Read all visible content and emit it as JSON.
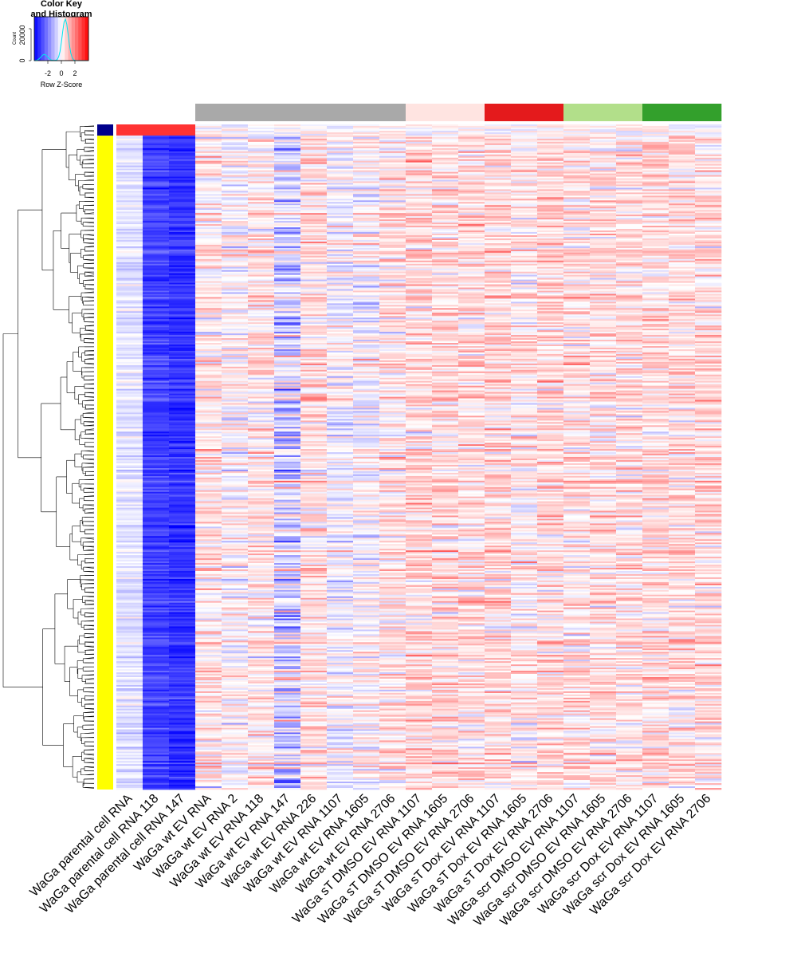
{
  "chart_data": {
    "type": "heatmap",
    "color_key": {
      "title_line1": "Color Key",
      "title_line2": "and Histogram",
      "x_ticks": [
        "-2",
        "0",
        "2"
      ],
      "y_label": "Count",
      "y_ticks": [
        "0",
        "20000"
      ],
      "x_label": "Row Z-Score",
      "scale": [
        "#0000ff",
        "#ffffff",
        "#ff0000"
      ],
      "histogram_color": "#00e5ee",
      "range": [
        -3.5,
        3.5
      ]
    },
    "columns": [
      "WaGa parental cell RNA",
      "WaGa parental cell RNA 118",
      "WaGa parental cell RNA 147",
      "WaGa wt EV RNA",
      "WaGa wt EV RNA 2",
      "WaGa wt EV RNA 118",
      "WaGa wt EV RNA 147",
      "WaGa wt EV RNA 226",
      "WaGa wt EV RNA 1107",
      "WaGa wt EV RNA 1605",
      "WaGa wt EV RNA 2706",
      "WaGa sT DMSO EV RNA 1107",
      "WaGa sT DMSO EV RNA 1605",
      "WaGa sT DMSO EV RNA 2706",
      "WaGa sT Dox EV RNA 1107",
      "WaGa sT Dox EV RNA 1605",
      "WaGa sT Dox EV RNA 2706",
      "WaGa scr DMSO EV RNA 1107",
      "WaGa scr DMSO EV RNA 1605",
      "WaGa scr DMSO EV RNA 2706",
      "WaGa scr Dox EV RNA 1107",
      "WaGa scr Dox EV RNA 1605",
      "WaGa scr Dox EV RNA 2706"
    ],
    "column_groups": [
      {
        "color": "#ffffff",
        "span": 3
      },
      {
        "color": "#a9a9a9",
        "span": 8
      },
      {
        "color": "#ffe4e1",
        "span": 3
      },
      {
        "color": "#e41a1c",
        "span": 3
      },
      {
        "color": "#b2df8a",
        "span": 3
      },
      {
        "color": "#33a02c",
        "span": 3
      }
    ],
    "row_groups": [
      {
        "color": "#00008b",
        "fraction": 0.017
      },
      {
        "color": "#ffff00",
        "fraction": 0.983
      }
    ],
    "column_mean_zscore": [
      -0.4,
      -2.6,
      -2.8,
      0.3,
      0.05,
      0.35,
      -0.6,
      0.45,
      -0.1,
      0.0,
      0.35,
      0.55,
      0.5,
      0.45,
      0.55,
      0.3,
      0.5,
      0.4,
      0.45,
      0.4,
      0.5,
      0.5,
      0.45
    ],
    "grid": false
  }
}
